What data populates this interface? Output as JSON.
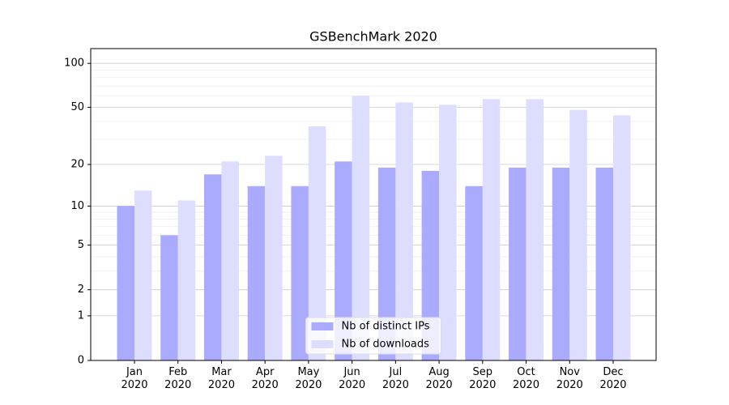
{
  "chart_data": {
    "type": "bar",
    "title": "GSBenchMark 2020",
    "categories": [
      "Jan\n2020",
      "Feb\n2020",
      "Mar\n2020",
      "Apr\n2020",
      "May\n2020",
      "Jun\n2020",
      "Jul\n2020",
      "Aug\n2020",
      "Sep\n2020",
      "Oct\n2020",
      "Nov\n2020",
      "Dec\n2020"
    ],
    "series": [
      {
        "name": "Nb of distinct IPs",
        "color": "#aaaaff",
        "values": [
          10,
          6,
          17,
          14,
          14,
          21,
          19,
          18,
          14,
          19,
          19,
          19
        ]
      },
      {
        "name": "Nb of downloads",
        "color": "#ddddff",
        "values": [
          13,
          11,
          21,
          23,
          37,
          60,
          54,
          52,
          57,
          57,
          48,
          44
        ]
      }
    ],
    "yscale": "log1p",
    "ylim": [
      0,
      126
    ],
    "yticks": [
      0,
      1,
      2,
      5,
      10,
      20,
      50,
      100
    ],
    "yminorticks": [
      3,
      4,
      6,
      7,
      8,
      9,
      30,
      40,
      60,
      70,
      80,
      90
    ],
    "grid": true,
    "legend": "lower center"
  }
}
